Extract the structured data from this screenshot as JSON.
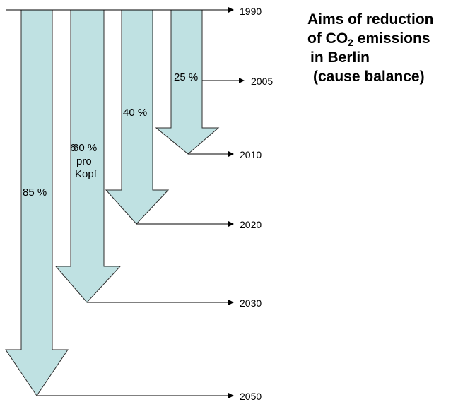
{
  "title": {
    "line1": "Aims of reduction",
    "line2_prefix": "of CO",
    "line2_subscript": "2",
    "line2_suffix": " emissions",
    "line3": "in Berlin",
    "line4": "(cause balance)"
  },
  "baseline_year": "1990",
  "years": [
    "2005",
    "2010",
    "2020",
    "2030",
    "2050"
  ],
  "arrows": [
    {
      "id": "2050",
      "label_lines": [
        "85 %"
      ],
      "target_year": "2050"
    },
    {
      "id": "2030",
      "label_lines": [
        "60 %",
        "pro",
        "Kopf"
      ],
      "label_overlay": "6",
      "target_year": "2030"
    },
    {
      "id": "2020",
      "label_lines": [
        "40 %"
      ],
      "target_year": "2020"
    },
    {
      "id": "2010",
      "label_lines": [
        "25 %"
      ],
      "target_year": "2010"
    }
  ],
  "colors": {
    "arrow_fill": "#bfe1e2",
    "arrow_stroke": "#2b2b2b",
    "line": "#000000",
    "text": "#000000"
  }
}
